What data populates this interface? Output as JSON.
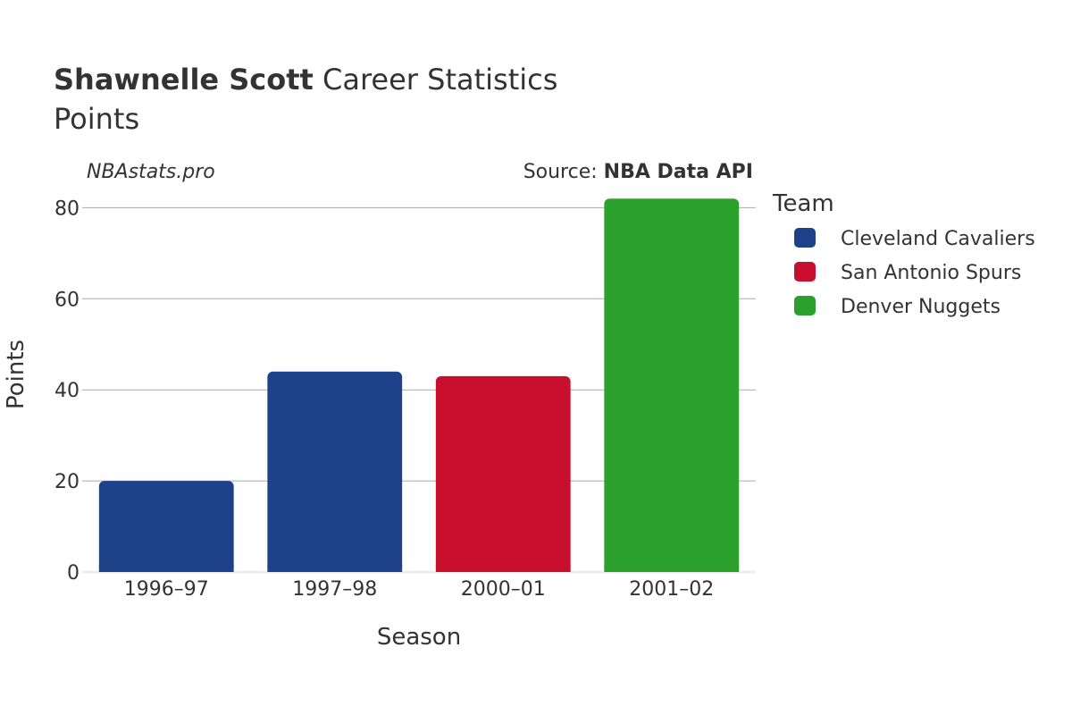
{
  "header": {
    "player": "Shawnelle Scott",
    "title_rest": " Career Statistics",
    "subtitle": "Points",
    "brand": "NBAstats.pro",
    "source_label": "Source: ",
    "source_name": "NBA Data API"
  },
  "legend": {
    "title": "Team",
    "items": [
      {
        "name": "Cleveland Cavaliers",
        "color": "#1d428a"
      },
      {
        "name": "San Antonio Spurs",
        "color": "#c8102e"
      },
      {
        "name": "Denver Nuggets",
        "color": "#2ca02c"
      }
    ]
  },
  "chart_data": {
    "type": "bar",
    "title": "Shawnelle Scott Career Statistics",
    "subtitle": "Points",
    "xlabel": "Season",
    "ylabel": "Points",
    "categories": [
      "1996–97",
      "1997–98",
      "2000–01",
      "2001–02"
    ],
    "values": [
      20,
      44,
      43,
      82
    ],
    "teams": [
      "Cleveland Cavaliers",
      "Cleveland Cavaliers",
      "San Antonio Spurs",
      "Denver Nuggets"
    ],
    "colors": [
      "#1d428a",
      "#1d428a",
      "#c8102e",
      "#2ca02c"
    ],
    "ylim": [
      0,
      84
    ],
    "yticks": [
      0,
      20,
      40,
      60,
      80
    ],
    "grid": true,
    "legend_position": "right"
  }
}
